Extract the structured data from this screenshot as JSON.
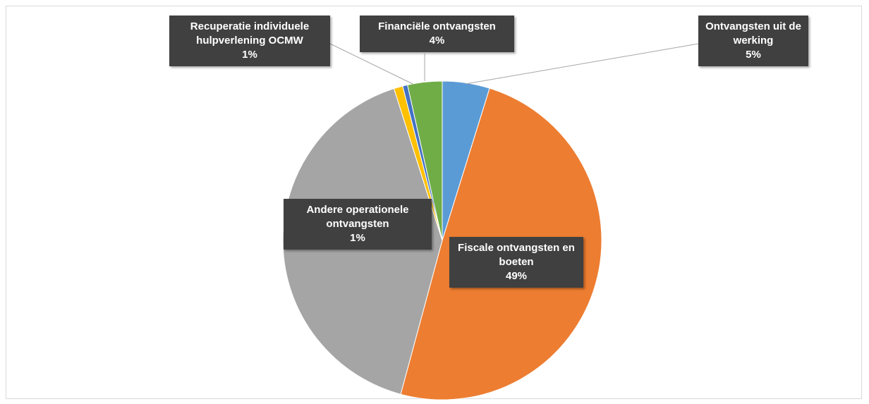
{
  "chart_data": {
    "type": "pie",
    "categories": [
      "Ontvangsten uit de werking",
      "Fiscale ontvangsten en boeten",
      null,
      "Andere operationele ontvangsten",
      "Recuperatie individuele hulpverlening OCMW",
      "Financiële ontvangsten"
    ],
    "values": [
      4.8,
      49.4,
      40.9,
      0.9,
      0.5,
      3.5
    ],
    "value_labels": [
      "5%",
      "49%",
      null,
      "1%",
      "1%",
      "4%"
    ],
    "colors": [
      "#5b9bd5",
      "#ed7d31",
      "#a5a5a5",
      "#ffc000",
      "#4472c4",
      "#70ad47"
    ]
  }
}
